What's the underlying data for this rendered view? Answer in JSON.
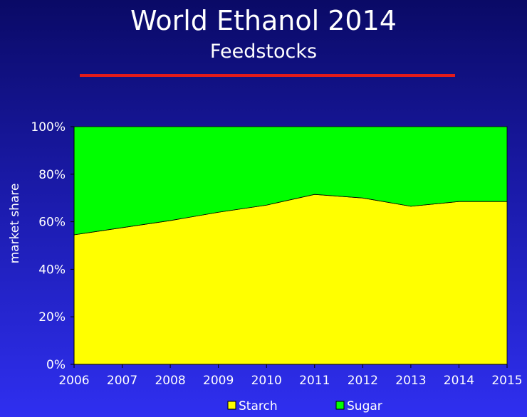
{
  "header": {
    "title": "World Ethanol 2014",
    "subtitle": "Feedstocks"
  },
  "colors": {
    "starch": "#ffff00",
    "sugar": "#00ff00",
    "rule": "#e41b1b",
    "outline": "#000000"
  },
  "chart_data": {
    "type": "area",
    "stacked": true,
    "normalized": true,
    "title": "World Ethanol 2014",
    "subtitle": "Feedstocks",
    "xlabel": "",
    "ylabel": "market share",
    "x": [
      "2006",
      "2007",
      "2008",
      "2009",
      "2010",
      "2011",
      "2012",
      "2013",
      "2014",
      "2015"
    ],
    "y_ticks": [
      "0%",
      "20%",
      "40%",
      "60%",
      "80%",
      "100%"
    ],
    "ylim": [
      0,
      100
    ],
    "series": [
      {
        "name": "Starch",
        "color": "#ffff00",
        "values": [
          54.5,
          57.5,
          60.5,
          64.0,
          67.0,
          71.5,
          70.0,
          66.5,
          68.5,
          68.5
        ]
      },
      {
        "name": "Sugar",
        "color": "#00ff00",
        "values": [
          45.5,
          42.5,
          39.5,
          36.0,
          33.0,
          28.5,
          30.0,
          33.5,
          31.5,
          31.5
        ]
      }
    ],
    "legend": {
      "position": "bottom",
      "items": [
        "Starch",
        "Sugar"
      ]
    },
    "grid": false
  }
}
